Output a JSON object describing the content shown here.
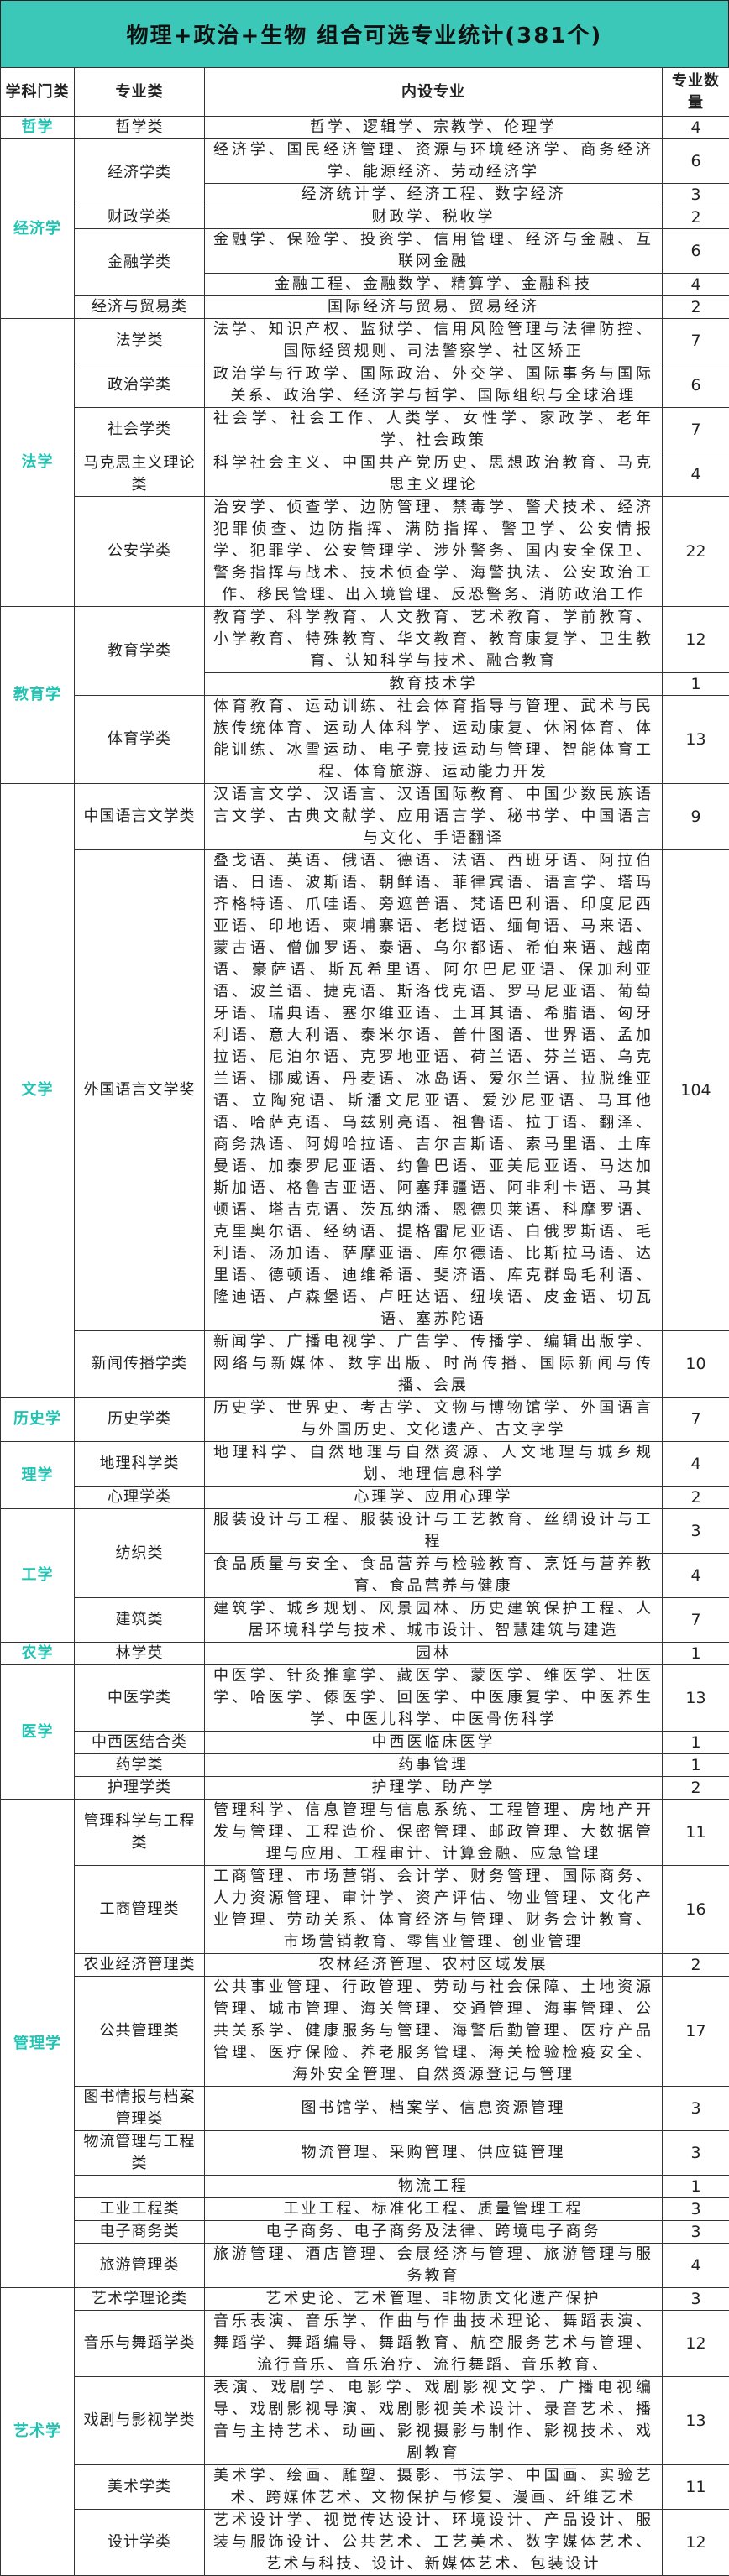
{
  "title": "物理+政治+生物  组合可选专业统计(381个)",
  "headers": {
    "category": "学科门类",
    "group": "专业类",
    "majors": "内设专业",
    "count": "专业数量"
  },
  "colors": {
    "title_band": "#3cc8b8",
    "category_text": "#22c3b2"
  },
  "categories": [
    {
      "name": "哲学",
      "groups": [
        {
          "name": "哲学类",
          "items": [
            {
              "majors": "哲学、逻辑学、宗教学、伦理学",
              "count": "4"
            }
          ]
        }
      ]
    },
    {
      "name": "经济学",
      "groups": [
        {
          "name": "经济学类",
          "items": [
            {
              "majors": "经济学、国民经济管理、资源与环境经济学、商务经济学、能源经济、劳动经济学",
              "count": "6"
            },
            {
              "majors": "经济统计学、经济工程、数字经济",
              "count": "3"
            }
          ]
        },
        {
          "name": "财政学类",
          "items": [
            {
              "majors": "财政学、税收学",
              "count": "2"
            }
          ]
        },
        {
          "name": "金融学类",
          "items": [
            {
              "majors": "金融学、保险学、投资学、信用管理、经济与金融、互联网金融",
              "count": "6"
            },
            {
              "majors": "金融工程、金融数学、精算学、金融科技",
              "count": "4"
            }
          ]
        },
        {
          "name": "经济与贸易类",
          "items": [
            {
              "majors": "国际经济与贸易、贸易经济",
              "count": "2"
            }
          ]
        }
      ]
    },
    {
      "name": "法学",
      "groups": [
        {
          "name": "法学类",
          "items": [
            {
              "majors": "法学、知识产权、监狱学、信用风险管理与法律防控、国际经贸规则、司法警察学、社区矫正",
              "count": "7"
            }
          ]
        },
        {
          "name": "政治学类",
          "items": [
            {
              "majors": "政治学与行政学、国际政治、外交学、国际事务与国际关系、政治学、经济学与哲学、国际组织与全球治理",
              "count": "6"
            }
          ]
        },
        {
          "name": "社会学类",
          "items": [
            {
              "majors": "社会学、社会工作、人类学、女性学、家政学、老年学、社会政策",
              "count": "7"
            }
          ]
        },
        {
          "name": "马克思主义理论类",
          "items": [
            {
              "majors": "科学社会主义、中国共产党历史、思想政治教育、马克思主义理论",
              "count": "4"
            }
          ]
        },
        {
          "name": "公安学类",
          "items": [
            {
              "majors": "治安学、侦查学、边防管理、禁毒学、警犬技术、经济犯罪侦查、边防指挥、满防指挥、警卫学、公安情报学、犯罪学、公安管理学、涉外警务、国内安全保卫、警务指挥与战术、技术侦查学、海警执法、公安政治工作、移民管理、出入境管理、反恐警务、消防政治工作",
              "count": "22"
            }
          ]
        }
      ]
    },
    {
      "name": "教育学",
      "groups": [
        {
          "name": "教育学类",
          "items": [
            {
              "majors": "教育学、科学教育、人文教育、艺术教育、学前教育、小学教育、特殊教育、华文教育、教育康复学、卫生教育、认知科学与技术、融合教育",
              "count": "12"
            },
            {
              "majors": "教育技术学",
              "count": "1"
            }
          ]
        },
        {
          "name": "体育学类",
          "items": [
            {
              "majors": "体育教育、运动训练、社会体育指导与管理、武术与民族传统体育、运动人体科学、运动康复、休闲体育、体能训练、冰雪运动、电子竞技运动与管理、智能体育工程、体育旅游、运动能力开发",
              "count": "13"
            }
          ]
        }
      ]
    },
    {
      "name": "文学",
      "groups": [
        {
          "name": "中国语言文学类",
          "items": [
            {
              "majors": "汉语言文学、汉语言、汉语国际教育、中国少数民族语言文学、古典文献学、应用语言学、秘书学、中国语言与文化、手语翻译",
              "count": "9"
            }
          ]
        },
        {
          "name": "外国语言文学奖",
          "items": [
            {
              "majors": "叠戈语、英语、俄语、德语、法语、西班牙语、阿拉伯语、日语、波斯语、朝鲜语、菲律宾语、语言学、塔玛齐格特语、爪哇语、旁遮普语、梵语巴利语、印度尼西亚语、印地语、柬埔寨语、老挝语、缅甸语、马来语、蒙古语、僧伽罗语、泰语、乌尔都语、希伯来语、越南语、豪萨语、斯瓦希里语、阿尔巴尼亚语、保加利亚语、波兰语、捷克语、斯洛伐克语、罗马尼亚语、葡萄牙语、瑞典语、塞尔维亚语、土耳其语、希腊语、匈牙利语、意大利语、泰米尔语、普什图语、世界语、孟加拉语、尼泊尔语、克罗地亚语、荷兰语、芬兰语、乌克兰语、挪威语、丹麦语、冰岛语、爱尔兰语、拉脱维亚语、立陶宛语、斯潘文尼亚语、爱沙尼亚语、马耳他语、哈萨克语、乌兹别亮语、祖鲁语、拉丁语、翻泽、商务热语、阿姆哈拉语、吉尔吉斯语、索马里语、土库曼语、加泰罗尼亚语、约鲁巴语、亚美尼亚语、马达加斯加语、格鲁吉亚语、阿塞拜疆语、阿非利卡语、马其顿语、塔吉克语、茨瓦纳潘、恩德贝莱语、科摩罗语、克里奥尔语、经纳语、提格雷尼亚语、白俄罗斯语、毛利语、汤加语、萨摩亚语、库尔德语、比斯拉马语、达里语、德顿语、迪维希语、斐济语、库克群岛毛利语、隆迪语、卢森堡语、卢旺达语、纽埃语、皮金语、切瓦语、塞苏陀语",
              "count": "104"
            }
          ]
        },
        {
          "name": "新闻传播学类",
          "items": [
            {
              "majors": "新闻学、广播电视学、广告学、传播学、编辑出版学、网络与新媒体、数字出版、时尚传播、国际新闻与传播、会展",
              "count": "10"
            }
          ]
        }
      ]
    },
    {
      "name": "历史学",
      "groups": [
        {
          "name": "历史学类",
          "items": [
            {
              "majors": "历史学、世界史、考古学、文物与博物馆学、外国语言与外国历史、文化遗产、古文字学",
              "count": "7"
            }
          ]
        }
      ]
    },
    {
      "name": "理学",
      "groups": [
        {
          "name": "地理科学类",
          "items": [
            {
              "majors": "地理科学、自然地理与自然资源、人文地理与城乡规划、地理信息科学",
              "count": "4"
            }
          ]
        },
        {
          "name": "心理学类",
          "items": [
            {
              "majors": "心理学、应用心理学",
              "count": "2"
            }
          ]
        }
      ]
    },
    {
      "name": "工学",
      "groups": [
        {
          "name": "纺织类",
          "items": [
            {
              "majors": "服装设计与工程、服装设计与工艺教育、丝绸设计与工程",
              "count": "3"
            },
            {
              "majors": "食品质量与安全、食品营养与检验教育、烹饪与营养教育、食品营养与健康",
              "count": "4"
            }
          ]
        },
        {
          "name": "建筑类",
          "items": [
            {
              "majors": "建筑学、城乡规划、风景园林、历史建筑保护工程、人居环境科学与技术、城市设计、智慧建筑与建造",
              "count": "7"
            }
          ]
        }
      ]
    },
    {
      "name": "农学",
      "groups": [
        {
          "name": "林学英",
          "items": [
            {
              "majors": "园林",
              "count": "1"
            }
          ]
        }
      ]
    },
    {
      "name": "医学",
      "groups": [
        {
          "name": "中医学类",
          "items": [
            {
              "majors": "中医学、针灸推拿学、藏医学、蒙医学、维医学、壮医学、哈医学、傣医学、回医学、中医康复学、中医养生学、中医儿科学、中医骨伤科学",
              "count": "13"
            }
          ]
        },
        {
          "name": "中西医结合类",
          "items": [
            {
              "majors": "中西医临床医学",
              "count": "1"
            }
          ]
        },
        {
          "name": "药学类",
          "items": [
            {
              "majors": "药事管理",
              "count": "1"
            }
          ]
        },
        {
          "name": "护理学类",
          "items": [
            {
              "majors": "护理学、助产学",
              "count": "2"
            }
          ]
        }
      ]
    },
    {
      "name": "管理学",
      "groups": [
        {
          "name": "管理科学与工程类",
          "items": [
            {
              "majors": "管理科学、信息管理与信息系统、工程管理、房地产开发与管理、工程造价、保密管理、邮政管理、大数据管理与应用、工程审计、计算金融、应急管理",
              "count": "11"
            }
          ]
        },
        {
          "name": "工商管理类",
          "items": [
            {
              "majors": "工商管理、市场营销、会计学、财务管理、国际商务、人力资源管理、审计学、资产评估、物业管理、文化产业管理、劳动关系、体育经济与管理、财务会计教育、市场营销教育、零售业管理、创业管理",
              "count": "16"
            }
          ]
        },
        {
          "name": "农业经济管理类",
          "items": [
            {
              "majors": "农林经济管理、农村区域发展",
              "count": "2"
            }
          ]
        },
        {
          "name": "公共管理类",
          "items": [
            {
              "majors": "公共事业管理、行政管理、劳动与社会保障、土地资源管理、城市管理、海关管理、交通管理、海事管理、公共关系学、健康服务与管理、海警后勤管理、医疗产品管理、医疗保险、养老服务管理、海关检验检疫安全、海外安全管理、自然资源登记与管理",
              "count": "17"
            }
          ]
        },
        {
          "name": "图书情报与档案管理类",
          "items": [
            {
              "majors": "图书馆学、档案学、信息资源管理",
              "count": "3"
            }
          ]
        },
        {
          "name": "物流管理与工程类",
          "items": [
            {
              "majors": "物流管理、采购管理、供应链管理",
              "count": "3"
            }
          ]
        },
        {
          "name": "",
          "items": [
            {
              "majors": "物流工程",
              "count": "1"
            }
          ]
        },
        {
          "name": "工业工程类",
          "items": [
            {
              "majors": "工业工程、标准化工程、质量管理工程",
              "count": "3"
            }
          ]
        },
        {
          "name": "电子商务类",
          "items": [
            {
              "majors": "电子商务、电子商务及法律、跨境电子商务",
              "count": "3"
            }
          ]
        },
        {
          "name": "旅游管理类",
          "items": [
            {
              "majors": "旅游管理、酒店管理、会展经济与管理、旅游管理与服务教育",
              "count": "4"
            }
          ]
        }
      ]
    },
    {
      "name": "艺术学",
      "groups": [
        {
          "name": "艺术学理论类",
          "items": [
            {
              "majors": "艺术史论、艺术管理、非物质文化遗产保护",
              "count": "3"
            }
          ]
        },
        {
          "name": "音乐与舞蹈学类",
          "items": [
            {
              "majors": "音乐表演、音乐学、作曲与作曲技术理论、舞蹈表演、舞蹈学、舞蹈编导、舞蹈教育、航空服务艺术与管理、流行音乐、音乐治疗、流行舞蹈、音乐教育、",
              "count": "12"
            }
          ]
        },
        {
          "name": "戏剧与影视学类",
          "items": [
            {
              "majors": "表演、戏剧学、电影学、戏剧影视文学、广播电视编导、戏剧影视导演、戏剧影视美术设计、录音艺术、播音与主持艺术、动画、影视摄影与制作、影视技术、戏剧教育",
              "count": "13"
            }
          ]
        },
        {
          "name": "美术学类",
          "items": [
            {
              "majors": "美术学、绘画、雕塑、摄影、书法学、中国画、实验艺术、跨媒体艺术、文物保护与修复、漫画、纤维艺术",
              "count": "11"
            }
          ]
        },
        {
          "name": "设计学类",
          "items": [
            {
              "majors": "艺术设计学、视觉传达设计、环境设计、产品设计、服装与服饰设计、公共艺术、工艺美术、数字媒体艺术、艺术与科技、设计、新媒体艺术、包装设计",
              "count": "12"
            }
          ]
        }
      ]
    }
  ]
}
